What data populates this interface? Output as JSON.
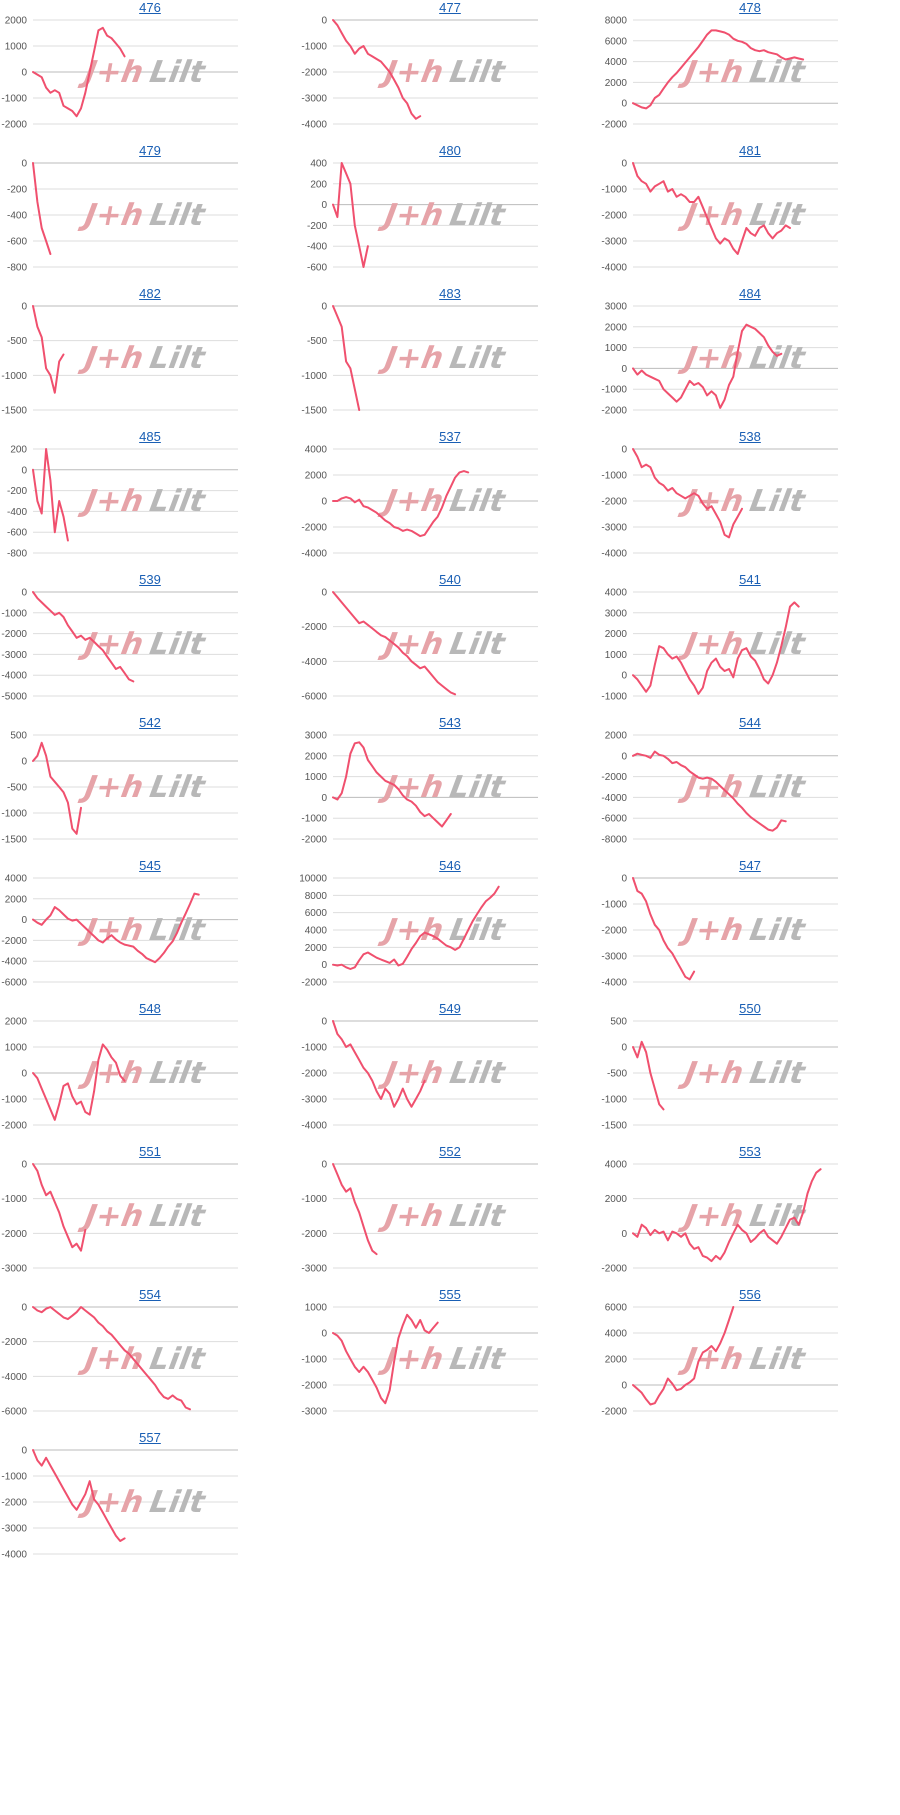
{
  "page": {
    "line_color": "#f0506e",
    "link_color": "#1a5fb4",
    "grid_color": "#dddddd",
    "zero_line_color": "#bbbbbb"
  },
  "watermark": {
    "red": "J+h",
    "grey": "Lilt"
  },
  "chart_data": [
    {
      "type": "line",
      "title": "476",
      "yticks": [
        -2000,
        -1000,
        0,
        1000,
        2000
      ],
      "ylim": [
        -2000,
        2000
      ],
      "xlim": [
        0,
        47
      ],
      "values": [
        0,
        -100,
        -200,
        -600,
        -800,
        -700,
        -800,
        -1300,
        -1400,
        -1500,
        -1700,
        -1400,
        -800,
        0,
        800,
        1600,
        1700,
        1400,
        1300,
        1100,
        900,
        600
      ]
    },
    {
      "type": "line",
      "title": "477",
      "yticks": [
        -4000,
        -3000,
        -2000,
        -1000,
        0
      ],
      "ylim": [
        -4000,
        0
      ],
      "xlim": [
        0,
        47
      ],
      "values": [
        0,
        -200,
        -500,
        -800,
        -1000,
        -1300,
        -1100,
        -1000,
        -1300,
        -1400,
        -1500,
        -1600,
        -1800,
        -2000,
        -2300,
        -2600,
        -3000,
        -3200,
        -3600,
        -3800,
        -3700
      ]
    },
    {
      "type": "line",
      "title": "478",
      "yticks": [
        -2000,
        0,
        2000,
        4000,
        6000,
        8000
      ],
      "ylim": [
        -2000,
        8000
      ],
      "xlim": [
        0,
        47
      ],
      "values": [
        0,
        -200,
        -400,
        -500,
        -200,
        500,
        800,
        1400,
        2000,
        2500,
        2900,
        3400,
        3900,
        4400,
        4900,
        5400,
        6000,
        6600,
        7000,
        7000,
        6900,
        6800,
        6600,
        6200,
        6000,
        5900,
        5700,
        5300,
        5100,
        5000,
        5100,
        4900,
        4800,
        4700,
        4400,
        4200,
        4300,
        4400,
        4300,
        4200
      ]
    },
    {
      "type": "line",
      "title": "479",
      "yticks": [
        -800,
        -600,
        -400,
        -200,
        0
      ],
      "ylim": [
        -800,
        0
      ],
      "xlim": [
        0,
        47
      ],
      "values": [
        0,
        -300,
        -500,
        -600,
        -700
      ]
    },
    {
      "type": "line",
      "title": "480",
      "yticks": [
        -600,
        -400,
        -200,
        0,
        200,
        400
      ],
      "ylim": [
        -600,
        400
      ],
      "xlim": [
        0,
        47
      ],
      "values": [
        0,
        -120,
        400,
        300,
        200,
        -200,
        -400,
        -600,
        -400
      ]
    },
    {
      "type": "line",
      "title": "481",
      "yticks": [
        -4000,
        -3000,
        -2000,
        -1000,
        0
      ],
      "ylim": [
        -4000,
        0
      ],
      "xlim": [
        0,
        47
      ],
      "values": [
        0,
        -500,
        -700,
        -800,
        -1100,
        -900,
        -800,
        -700,
        -1100,
        -1000,
        -1300,
        -1200,
        -1300,
        -1500,
        -1500,
        -1300,
        -1700,
        -2100,
        -2500,
        -2900,
        -3100,
        -2900,
        -3000,
        -3300,
        -3500,
        -3000,
        -2500,
        -2700,
        -2800,
        -2500,
        -2400,
        -2700,
        -2900,
        -2700,
        -2600,
        -2400,
        -2500
      ]
    },
    {
      "type": "line",
      "title": "482",
      "yticks": [
        -1500,
        -1000,
        -500,
        0
      ],
      "ylim": [
        -1500,
        0
      ],
      "xlim": [
        0,
        47
      ],
      "values": [
        0,
        -300,
        -450,
        -900,
        -1000,
        -1250,
        -800,
        -700
      ]
    },
    {
      "type": "line",
      "title": "483",
      "yticks": [
        -1500,
        -1000,
        -500,
        0
      ],
      "ylim": [
        -1500,
        0
      ],
      "xlim": [
        0,
        47
      ],
      "values": [
        0,
        -150,
        -300,
        -800,
        -900,
        -1200,
        -1500
      ]
    },
    {
      "type": "line",
      "title": "484",
      "yticks": [
        -2000,
        -1000,
        0,
        1000,
        2000,
        3000
      ],
      "ylim": [
        -2000,
        3000
      ],
      "xlim": [
        0,
        47
      ],
      "values": [
        0,
        -300,
        -100,
        -300,
        -400,
        -500,
        -600,
        -1000,
        -1200,
        -1400,
        -1600,
        -1400,
        -1000,
        -600,
        -800,
        -700,
        -900,
        -1300,
        -1100,
        -1300,
        -1900,
        -1500,
        -800,
        -400,
        800,
        1800,
        2100,
        2000,
        1900,
        1700,
        1500,
        1100,
        800,
        600,
        700
      ]
    },
    {
      "type": "line",
      "title": "485",
      "yticks": [
        -800,
        -600,
        -400,
        -200,
        0,
        200
      ],
      "ylim": [
        -800,
        200
      ],
      "xlim": [
        0,
        47
      ],
      "values": [
        0,
        -300,
        -420,
        200,
        -100,
        -600,
        -300,
        -450,
        -680
      ]
    },
    {
      "type": "line",
      "title": "537",
      "yticks": [
        -4000,
        -2000,
        0,
        2000,
        4000
      ],
      "ylim": [
        -4000,
        4000
      ],
      "xlim": [
        0,
        47
      ],
      "values": [
        0,
        0,
        200,
        300,
        200,
        -100,
        100,
        -400,
        -500,
        -700,
        -900,
        -1200,
        -1500,
        -1700,
        -2000,
        -2100,
        -2300,
        -2200,
        -2300,
        -2500,
        -2700,
        -2600,
        -2100,
        -1600,
        -1200,
        -500,
        400,
        1100,
        1800,
        2200,
        2300,
        2200
      ]
    },
    {
      "type": "line",
      "title": "538",
      "yticks": [
        -4000,
        -3000,
        -2000,
        -1000,
        0
      ],
      "ylim": [
        -4000,
        0
      ],
      "xlim": [
        0,
        47
      ],
      "values": [
        0,
        -300,
        -700,
        -600,
        -700,
        -1100,
        -1300,
        -1400,
        -1600,
        -1500,
        -1700,
        -1800,
        -1900,
        -1800,
        -1700,
        -1800,
        -2100,
        -2300,
        -2200,
        -2500,
        -2800,
        -3300,
        -3400,
        -2900,
        -2600,
        -2300
      ]
    },
    {
      "type": "line",
      "title": "539",
      "yticks": [
        -5000,
        -4000,
        -3000,
        -2000,
        -1000,
        0
      ],
      "ylim": [
        -5000,
        0
      ],
      "xlim": [
        0,
        47
      ],
      "values": [
        0,
        -300,
        -500,
        -700,
        -900,
        -1100,
        -1000,
        -1200,
        -1600,
        -1900,
        -2200,
        -2100,
        -2300,
        -2200,
        -2400,
        -2600,
        -2800,
        -3100,
        -3400,
        -3700,
        -3600,
        -3900,
        -4200,
        -4300
      ]
    },
    {
      "type": "line",
      "title": "540",
      "yticks": [
        -6000,
        -4000,
        -2000,
        0
      ],
      "ylim": [
        -6000,
        0
      ],
      "xlim": [
        0,
        47
      ],
      "values": [
        0,
        -300,
        -600,
        -900,
        -1200,
        -1500,
        -1800,
        -1700,
        -1900,
        -2100,
        -2300,
        -2500,
        -2600,
        -2800,
        -3000,
        -3200,
        -3500,
        -3700,
        -4000,
        -4200,
        -4400,
        -4300,
        -4600,
        -4900,
        -5200,
        -5400,
        -5600,
        -5800,
        -5900
      ]
    },
    {
      "type": "line",
      "title": "541",
      "yticks": [
        -1000,
        0,
        1000,
        2000,
        3000,
        4000
      ],
      "ylim": [
        -1000,
        4000
      ],
      "xlim": [
        0,
        47
      ],
      "values": [
        0,
        -200,
        -500,
        -800,
        -500,
        500,
        1400,
        1300,
        1000,
        800,
        900,
        600,
        200,
        -200,
        -500,
        -900,
        -600,
        200,
        600,
        800,
        400,
        200,
        300,
        -100,
        800,
        1200,
        1300,
        900,
        700,
        300,
        -200,
        -400,
        0,
        600,
        1400,
        2300,
        3300,
        3500,
        3300
      ]
    },
    {
      "type": "line",
      "title": "542",
      "yticks": [
        -1500,
        -1000,
        -500,
        0,
        500
      ],
      "ylim": [
        -1500,
        500
      ],
      "xlim": [
        0,
        47
      ],
      "values": [
        0,
        100,
        350,
        100,
        -300,
        -400,
        -500,
        -600,
        -800,
        -1300,
        -1400,
        -900
      ]
    },
    {
      "type": "line",
      "title": "543",
      "yticks": [
        -2000,
        -1000,
        0,
        1000,
        2000,
        3000
      ],
      "ylim": [
        -2000,
        3000
      ],
      "xlim": [
        0,
        47
      ],
      "values": [
        0,
        -100,
        200,
        1000,
        2100,
        2600,
        2650,
        2400,
        1800,
        1500,
        1200,
        1000,
        800,
        700,
        600,
        400,
        100,
        -100,
        -200,
        -400,
        -700,
        -900,
        -800,
        -1000,
        -1200,
        -1400,
        -1100,
        -800
      ]
    },
    {
      "type": "line",
      "title": "544",
      "yticks": [
        -8000,
        -6000,
        -4000,
        -2000,
        0,
        2000
      ],
      "ylim": [
        -8000,
        2000
      ],
      "xlim": [
        0,
        47
      ],
      "values": [
        0,
        200,
        100,
        0,
        -200,
        400,
        100,
        0,
        -300,
        -700,
        -600,
        -900,
        -1100,
        -1500,
        -1800,
        -2100,
        -2200,
        -2100,
        -2200,
        -2500,
        -2900,
        -3300,
        -3700,
        -4100,
        -4600,
        -5000,
        -5500,
        -5900,
        -6200,
        -6500,
        -6800,
        -7100,
        -7200,
        -6900,
        -6200,
        -6300
      ]
    },
    {
      "type": "line",
      "title": "545",
      "yticks": [
        -6000,
        -4000,
        -2000,
        0,
        2000,
        4000
      ],
      "ylim": [
        -6000,
        4000
      ],
      "xlim": [
        0,
        47
      ],
      "values": [
        0,
        -300,
        -500,
        0,
        400,
        1200,
        900,
        500,
        100,
        -100,
        0,
        -400,
        -800,
        -1200,
        -1600,
        -2000,
        -2200,
        -1800,
        -1500,
        -1900,
        -2200,
        -2400,
        -2500,
        -2600,
        -3000,
        -3300,
        -3700,
        -3900,
        -4100,
        -3700,
        -3200,
        -2600,
        -2100,
        -1300,
        -300,
        600,
        1500,
        2500,
        2400
      ]
    },
    {
      "type": "line",
      "title": "546",
      "yticks": [
        -2000,
        0,
        2000,
        4000,
        6000,
        8000,
        10000
      ],
      "ylim": [
        -2000,
        10000
      ],
      "xlim": [
        0,
        47
      ],
      "values": [
        0,
        -100,
        0,
        -300,
        -500,
        -300,
        500,
        1200,
        1400,
        1100,
        800,
        600,
        400,
        200,
        600,
        -100,
        100,
        900,
        1800,
        2500,
        3300,
        3700,
        3500,
        3300,
        3000,
        2600,
        2200,
        2000,
        1700,
        2000,
        3000,
        4000,
        5000,
        5800,
        6600,
        7300,
        7700,
        8200,
        9000
      ]
    },
    {
      "type": "line",
      "title": "547",
      "yticks": [
        -4000,
        -3000,
        -2000,
        -1000,
        0
      ],
      "ylim": [
        -4000,
        0
      ],
      "xlim": [
        0,
        47
      ],
      "values": [
        0,
        -500,
        -600,
        -900,
        -1400,
        -1800,
        -2000,
        -2400,
        -2700,
        -2900,
        -3200,
        -3500,
        -3800,
        -3900,
        -3600
      ]
    },
    {
      "type": "line",
      "title": "548",
      "yticks": [
        -2000,
        -1000,
        0,
        1000,
        2000
      ],
      "ylim": [
        -2000,
        2000
      ],
      "xlim": [
        0,
        47
      ],
      "values": [
        0,
        -200,
        -600,
        -1000,
        -1400,
        -1800,
        -1200,
        -500,
        -400,
        -900,
        -1200,
        -1100,
        -1500,
        -1600,
        -700,
        500,
        1100,
        900,
        600,
        400,
        -100,
        -300
      ]
    },
    {
      "type": "line",
      "title": "549",
      "yticks": [
        -4000,
        -3000,
        -2000,
        -1000,
        0
      ],
      "ylim": [
        -4000,
        0
      ],
      "xlim": [
        0,
        47
      ],
      "values": [
        0,
        -500,
        -700,
        -1000,
        -900,
        -1200,
        -1500,
        -1800,
        -2000,
        -2300,
        -2700,
        -3000,
        -2600,
        -2800,
        -3300,
        -3000,
        -2600,
        -3000,
        -3300,
        -3000,
        -2700,
        -2300
      ]
    },
    {
      "type": "line",
      "title": "550",
      "yticks": [
        -1500,
        -1000,
        -500,
        0,
        500
      ],
      "ylim": [
        -1500,
        500
      ],
      "xlim": [
        0,
        47
      ],
      "values": [
        0,
        -200,
        100,
        -100,
        -500,
        -800,
        -1100,
        -1200
      ]
    },
    {
      "type": "line",
      "title": "551",
      "yticks": [
        -3000,
        -2000,
        -1000,
        0
      ],
      "ylim": [
        -3000,
        0
      ],
      "xlim": [
        0,
        47
      ],
      "values": [
        0,
        -200,
        -600,
        -900,
        -800,
        -1100,
        -1400,
        -1800,
        -2100,
        -2400,
        -2300,
        -2500,
        -1900
      ]
    },
    {
      "type": "line",
      "title": "552",
      "yticks": [
        -3000,
        -2000,
        -1000,
        0
      ],
      "ylim": [
        -3000,
        0
      ],
      "xlim": [
        0,
        47
      ],
      "values": [
        0,
        -300,
        -600,
        -800,
        -700,
        -1100,
        -1400,
        -1800,
        -2200,
        -2500,
        -2600
      ]
    },
    {
      "type": "line",
      "title": "553",
      "yticks": [
        -2000,
        0,
        2000,
        4000
      ],
      "ylim": [
        -2000,
        4000
      ],
      "xlim": [
        0,
        47
      ],
      "values": [
        0,
        -200,
        500,
        300,
        -100,
        200,
        0,
        100,
        -400,
        100,
        0,
        -200,
        0,
        -600,
        -900,
        -800,
        -1300,
        -1400,
        -1600,
        -1300,
        -1500,
        -1100,
        -500,
        0,
        500,
        200,
        0,
        -500,
        -300,
        0,
        200,
        -200,
        -400,
        -600,
        -200,
        300,
        800,
        900,
        500,
        1200,
        2300,
        3000,
        3500,
        3700
      ]
    },
    {
      "type": "line",
      "title": "554",
      "yticks": [
        -6000,
        -4000,
        -2000,
        0
      ],
      "ylim": [
        -6000,
        0
      ],
      "xlim": [
        0,
        47
      ],
      "values": [
        0,
        -200,
        -300,
        -100,
        0,
        -200,
        -400,
        -600,
        -700,
        -500,
        -300,
        0,
        -200,
        -400,
        -600,
        -900,
        -1100,
        -1400,
        -1600,
        -1900,
        -2200,
        -2500,
        -2700,
        -3000,
        -3300,
        -3600,
        -3900,
        -4200,
        -4500,
        -4900,
        -5200,
        -5300,
        -5100,
        -5300,
        -5400,
        -5800,
        -5900
      ]
    },
    {
      "type": "line",
      "title": "555",
      "yticks": [
        -3000,
        -2000,
        -1000,
        0,
        1000
      ],
      "ylim": [
        -3000,
        1000
      ],
      "xlim": [
        0,
        47
      ],
      "values": [
        0,
        -100,
        -300,
        -700,
        -1000,
        -1300,
        -1500,
        -1300,
        -1500,
        -1800,
        -2100,
        -2500,
        -2700,
        -2200,
        -1100,
        -200,
        300,
        700,
        500,
        200,
        500,
        100,
        0,
        200,
        400
      ]
    },
    {
      "type": "line",
      "title": "556",
      "yticks": [
        -2000,
        0,
        2000,
        4000,
        6000
      ],
      "ylim": [
        -2000,
        6000
      ],
      "xlim": [
        0,
        47
      ],
      "values": [
        0,
        -300,
        -600,
        -1100,
        -1500,
        -1400,
        -800,
        -300,
        500,
        100,
        -400,
        -300,
        0,
        200,
        500,
        1800,
        2500,
        2700,
        3000,
        2600,
        3200,
        4000,
        5000,
        6000
      ]
    },
    {
      "type": "line",
      "title": "557",
      "yticks": [
        -4000,
        -3000,
        -2000,
        -1000,
        0
      ],
      "ylim": [
        -4000,
        0
      ],
      "xlim": [
        0,
        47
      ],
      "values": [
        0,
        -400,
        -600,
        -300,
        -600,
        -900,
        -1200,
        -1500,
        -1800,
        -2100,
        -2300,
        -2000,
        -1700,
        -1200,
        -1900,
        -2100,
        -2400,
        -2700,
        -3000,
        -3300,
        -3500,
        -3400
      ]
    }
  ]
}
